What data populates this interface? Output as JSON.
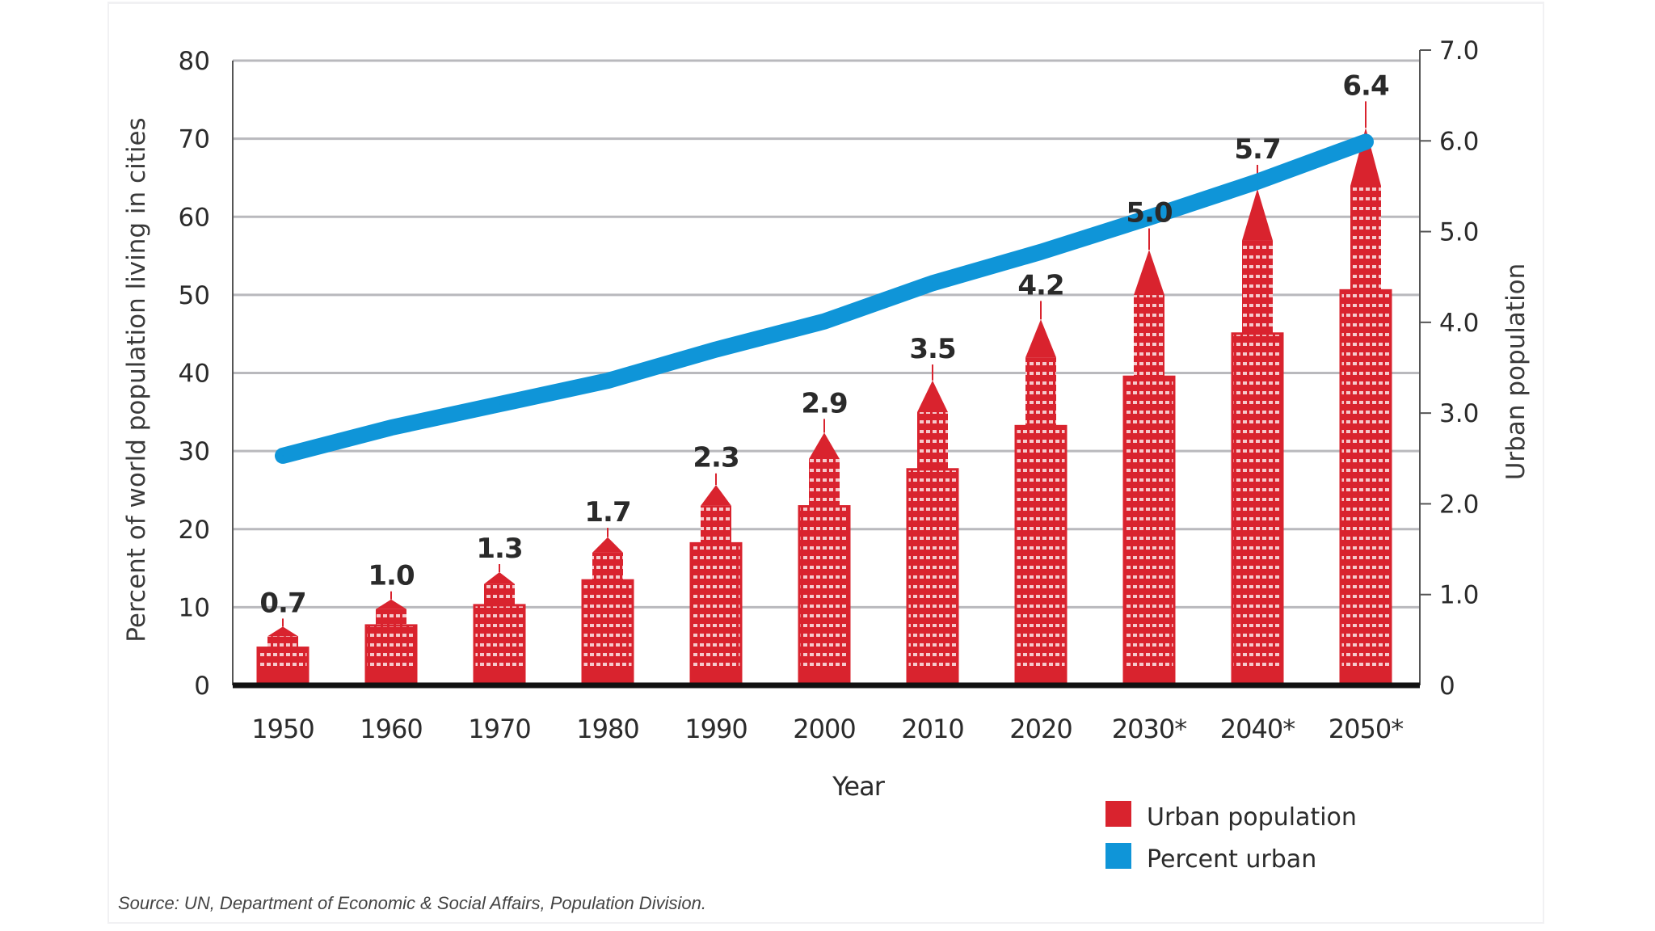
{
  "chart_data": {
    "type": "bar",
    "title": "",
    "categories": [
      "1950",
      "1960",
      "1970",
      "1980",
      "1990",
      "2000",
      "2010",
      "2020",
      "2030*",
      "2040*",
      "2050*"
    ],
    "series": [
      {
        "name": "Urban population",
        "axis": "right",
        "chart_type": "bar",
        "color": "#d9232e",
        "values": [
          0.7,
          1.0,
          1.3,
          1.7,
          2.3,
          2.9,
          3.5,
          4.2,
          5.0,
          5.7,
          6.4
        ],
        "data_labels": [
          "0.7",
          "1.0",
          "1.3",
          "1.7",
          "2.3",
          "2.9",
          "3.5",
          "4.2",
          "5.0",
          "5.7",
          "6.4"
        ]
      },
      {
        "name": "Percent urban",
        "axis": "left",
        "chart_type": "line",
        "color": "#0f95d8",
        "values": [
          29.4,
          33,
          36,
          39,
          43,
          46.6,
          51.5,
          55.5,
          59.9,
          64.5,
          69.6
        ]
      }
    ],
    "xlabel": "Year",
    "ylabel": "Percent of world population living in cities",
    "ylabel_right": "Urban population",
    "ylim": [
      0,
      80
    ],
    "ylim_right": [
      0,
      7
    ],
    "yticks": [
      "0",
      "10",
      "20",
      "30",
      "40",
      "50",
      "60",
      "70",
      "80"
    ],
    "yticks_right": [
      "0",
      "1.0",
      "2.0",
      "3.0",
      "4.0",
      "5.0",
      "6.0",
      "7.0"
    ],
    "grid": true,
    "legend": {
      "position": "bottom-right",
      "items": [
        {
          "label": "Urban population",
          "color": "#d9232e"
        },
        {
          "label": "Percent urban",
          "color": "#0f95d8"
        }
      ]
    },
    "source": "Source: UN, Department of Economic & Social Affairs, Population Division."
  }
}
